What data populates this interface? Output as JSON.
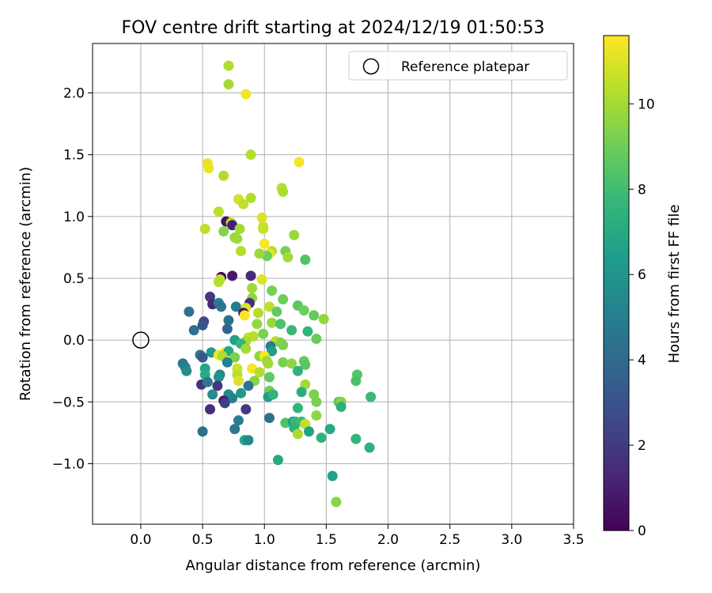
{
  "chart_data": {
    "type": "scatter",
    "title": "FOV centre drift starting at 2024/12/19 01:50:53",
    "xlabel": "Angular distance from reference (arcmin)",
    "ylabel": "Rotation from reference (arcmin)",
    "xlim": [
      -0.39,
      3.5
    ],
    "ylim": [
      -1.49,
      2.4
    ],
    "xticks": [
      0.0,
      0.5,
      1.0,
      1.5,
      2.0,
      2.5,
      3.0,
      3.5
    ],
    "xtick_labels": [
      "0.0",
      "0.5",
      "1.0",
      "1.5",
      "2.0",
      "2.5",
      "3.0",
      "3.5"
    ],
    "yticks": [
      -1.0,
      -0.5,
      0.0,
      0.5,
      1.0,
      1.5,
      2.0
    ],
    "ytick_labels": [
      "−1.0",
      "−0.5",
      "0.0",
      "0.5",
      "1.0",
      "1.5",
      "2.0"
    ],
    "grid": true,
    "legend": {
      "position": "top-right",
      "label": "Reference platepar"
    },
    "reference_point": {
      "x": 0.0,
      "y": 0.0
    },
    "colorbar": {
      "label": "Hours from first FF file",
      "min": 0,
      "max": 11.6,
      "ticks": [
        0,
        2,
        4,
        6,
        8,
        10
      ],
      "tick_labels": [
        "0",
        "2",
        "4",
        "6",
        "8",
        "10"
      ],
      "colormap": [
        "#440154",
        "#482878",
        "#3e4989",
        "#31688e",
        "#26828e",
        "#1f9e89",
        "#35b779",
        "#6ece58",
        "#b5de2b",
        "#fde725"
      ]
    },
    "points": [
      {
        "x": 0.71,
        "y": 2.22,
        "h": 10.2
      },
      {
        "x": 0.71,
        "y": 2.07,
        "h": 10.0
      },
      {
        "x": 0.85,
        "y": 1.99,
        "h": 11.4
      },
      {
        "x": 0.89,
        "y": 1.5,
        "h": 10.3
      },
      {
        "x": 0.54,
        "y": 1.43,
        "h": 11.2
      },
      {
        "x": 0.55,
        "y": 1.39,
        "h": 11.3
      },
      {
        "x": 1.28,
        "y": 1.44,
        "h": 11.4
      },
      {
        "x": 0.67,
        "y": 1.33,
        "h": 10.2
      },
      {
        "x": 1.14,
        "y": 1.23,
        "h": 10.3
      },
      {
        "x": 1.15,
        "y": 1.2,
        "h": 10.2
      },
      {
        "x": 0.79,
        "y": 1.14,
        "h": 10.8
      },
      {
        "x": 0.89,
        "y": 1.15,
        "h": 10.2
      },
      {
        "x": 0.83,
        "y": 1.1,
        "h": 10.5
      },
      {
        "x": 0.63,
        "y": 1.04,
        "h": 10.4
      },
      {
        "x": 0.98,
        "y": 0.99,
        "h": 11.0
      },
      {
        "x": 0.69,
        "y": 0.96,
        "h": 0.5
      },
      {
        "x": 0.73,
        "y": 0.95,
        "h": 10.3
      },
      {
        "x": 0.74,
        "y": 0.93,
        "h": 1.0
      },
      {
        "x": 0.99,
        "y": 0.92,
        "h": 10.9
      },
      {
        "x": 0.99,
        "y": 0.9,
        "h": 10.6
      },
      {
        "x": 0.52,
        "y": 0.9,
        "h": 10.5
      },
      {
        "x": 0.8,
        "y": 0.9,
        "h": 10.0
      },
      {
        "x": 0.67,
        "y": 0.88,
        "h": 9.4
      },
      {
        "x": 0.76,
        "y": 0.83,
        "h": 9.8
      },
      {
        "x": 0.78,
        "y": 0.82,
        "h": 9.9
      },
      {
        "x": 1.24,
        "y": 0.85,
        "h": 9.8
      },
      {
        "x": 1.0,
        "y": 0.78,
        "h": 11.5
      },
      {
        "x": 0.81,
        "y": 0.72,
        "h": 10.3
      },
      {
        "x": 1.06,
        "y": 0.72,
        "h": 10.4
      },
      {
        "x": 1.04,
        "y": 0.7,
        "h": 11.2
      },
      {
        "x": 1.02,
        "y": 0.68,
        "h": 9.0
      },
      {
        "x": 0.96,
        "y": 0.7,
        "h": 9.8
      },
      {
        "x": 1.17,
        "y": 0.72,
        "h": 9.2
      },
      {
        "x": 1.19,
        "y": 0.67,
        "h": 10.0
      },
      {
        "x": 1.33,
        "y": 0.65,
        "h": 8.4
      },
      {
        "x": 0.65,
        "y": 0.51,
        "h": 0.3
      },
      {
        "x": 0.74,
        "y": 0.52,
        "h": 0.8
      },
      {
        "x": 0.89,
        "y": 0.52,
        "h": 1.5
      },
      {
        "x": 0.64,
        "y": 0.49,
        "h": 10.8
      },
      {
        "x": 0.98,
        "y": 0.49,
        "h": 11.0
      },
      {
        "x": 0.63,
        "y": 0.47,
        "h": 10.3
      },
      {
        "x": 0.9,
        "y": 0.42,
        "h": 9.9
      },
      {
        "x": 1.06,
        "y": 0.4,
        "h": 9.2
      },
      {
        "x": 0.56,
        "y": 0.35,
        "h": 2.0
      },
      {
        "x": 0.9,
        "y": 0.34,
        "h": 9.6
      },
      {
        "x": 0.88,
        "y": 0.3,
        "h": 1.5
      },
      {
        "x": 1.15,
        "y": 0.33,
        "h": 9.0
      },
      {
        "x": 0.58,
        "y": 0.29,
        "h": 1.2
      },
      {
        "x": 0.63,
        "y": 0.3,
        "h": 5.0
      },
      {
        "x": 0.65,
        "y": 0.27,
        "h": 4.5
      },
      {
        "x": 0.77,
        "y": 0.27,
        "h": 4.8
      },
      {
        "x": 0.85,
        "y": 0.26,
        "h": 11.0
      },
      {
        "x": 1.04,
        "y": 0.27,
        "h": 10.5
      },
      {
        "x": 1.27,
        "y": 0.28,
        "h": 8.6
      },
      {
        "x": 1.32,
        "y": 0.24,
        "h": 9.0
      },
      {
        "x": 0.39,
        "y": 0.23,
        "h": 4.3
      },
      {
        "x": 0.83,
        "y": 0.22,
        "h": 0.6
      },
      {
        "x": 0.84,
        "y": 0.2,
        "h": 11.5
      },
      {
        "x": 0.95,
        "y": 0.22,
        "h": 10.3
      },
      {
        "x": 1.1,
        "y": 0.23,
        "h": 8.8
      },
      {
        "x": 1.4,
        "y": 0.2,
        "h": 8.8
      },
      {
        "x": 1.48,
        "y": 0.17,
        "h": 9.7
      },
      {
        "x": 0.71,
        "y": 0.16,
        "h": 4.2
      },
      {
        "x": 0.51,
        "y": 0.15,
        "h": 2.5
      },
      {
        "x": 0.5,
        "y": 0.12,
        "h": 3.0
      },
      {
        "x": 1.06,
        "y": 0.14,
        "h": 9.8
      },
      {
        "x": 0.94,
        "y": 0.13,
        "h": 9.7
      },
      {
        "x": 1.13,
        "y": 0.13,
        "h": 8.3
      },
      {
        "x": 0.43,
        "y": 0.08,
        "h": 4.3
      },
      {
        "x": 0.7,
        "y": 0.09,
        "h": 3.8
      },
      {
        "x": 1.22,
        "y": 0.08,
        "h": 7.8
      },
      {
        "x": 1.35,
        "y": 0.07,
        "h": 7.6
      },
      {
        "x": 0.99,
        "y": 0.05,
        "h": 9.2
      },
      {
        "x": 0.87,
        "y": 0.02,
        "h": 10.6
      },
      {
        "x": 0.91,
        "y": 0.03,
        "h": 10.3
      },
      {
        "x": 0.76,
        "y": 0.0,
        "h": 6.6
      },
      {
        "x": 0.85,
        "y": -0.01,
        "h": 10.1
      },
      {
        "x": 1.09,
        "y": -0.01,
        "h": 10.4
      },
      {
        "x": 1.13,
        "y": -0.02,
        "h": 9.4
      },
      {
        "x": 1.42,
        "y": 0.01,
        "h": 8.9
      },
      {
        "x": 0.81,
        "y": -0.03,
        "h": 7.7
      },
      {
        "x": 1.05,
        "y": -0.05,
        "h": 4.8
      },
      {
        "x": 1.15,
        "y": -0.04,
        "h": 9.3
      },
      {
        "x": 0.85,
        "y": -0.07,
        "h": 10.0
      },
      {
        "x": 0.57,
        "y": -0.1,
        "h": 6.3
      },
      {
        "x": 0.68,
        "y": -0.1,
        "h": 11.5
      },
      {
        "x": 0.71,
        "y": -0.09,
        "h": 7.0
      },
      {
        "x": 1.06,
        "y": -0.09,
        "h": 6.5
      },
      {
        "x": 0.48,
        "y": -0.12,
        "h": 4.5
      },
      {
        "x": 0.5,
        "y": -0.14,
        "h": 3.2
      },
      {
        "x": 0.63,
        "y": -0.12,
        "h": 11.4
      },
      {
        "x": 0.66,
        "y": -0.13,
        "h": 10.2
      },
      {
        "x": 0.76,
        "y": -0.14,
        "h": 9.3
      },
      {
        "x": 0.96,
        "y": -0.13,
        "h": 9.6
      },
      {
        "x": 1.0,
        "y": -0.13,
        "h": 11.5
      },
      {
        "x": 1.02,
        "y": -0.17,
        "h": 9.8
      },
      {
        "x": 0.34,
        "y": -0.19,
        "h": 4.7
      },
      {
        "x": 0.36,
        "y": -0.22,
        "h": 4.9
      },
      {
        "x": 0.7,
        "y": -0.18,
        "h": 5.1
      },
      {
        "x": 1.03,
        "y": -0.19,
        "h": 10.0
      },
      {
        "x": 1.15,
        "y": -0.18,
        "h": 9.2
      },
      {
        "x": 1.22,
        "y": -0.19,
        "h": 9.6
      },
      {
        "x": 1.32,
        "y": -0.17,
        "h": 8.8
      },
      {
        "x": 1.33,
        "y": -0.2,
        "h": 8.6
      },
      {
        "x": 1.27,
        "y": -0.25,
        "h": 7.5
      },
      {
        "x": 0.37,
        "y": -0.25,
        "h": 5.6
      },
      {
        "x": 0.52,
        "y": -0.23,
        "h": 6.8
      },
      {
        "x": 0.78,
        "y": -0.23,
        "h": 10.8
      },
      {
        "x": 0.9,
        "y": -0.23,
        "h": 11.5
      },
      {
        "x": 0.96,
        "y": -0.26,
        "h": 10.3
      },
      {
        "x": 0.64,
        "y": -0.28,
        "h": 5.3
      },
      {
        "x": 0.63,
        "y": -0.3,
        "h": 5.8
      },
      {
        "x": 0.78,
        "y": -0.28,
        "h": 10.4
      },
      {
        "x": 0.52,
        "y": -0.28,
        "h": 7.1
      },
      {
        "x": 1.04,
        "y": -0.3,
        "h": 8.7
      },
      {
        "x": 1.75,
        "y": -0.28,
        "h": 8.5
      },
      {
        "x": 0.79,
        "y": -0.33,
        "h": 11.0
      },
      {
        "x": 0.92,
        "y": -0.33,
        "h": 9.5
      },
      {
        "x": 1.74,
        "y": -0.33,
        "h": 8.2
      },
      {
        "x": 0.49,
        "y": -0.36,
        "h": 1.8
      },
      {
        "x": 0.62,
        "y": -0.37,
        "h": 1.9
      },
      {
        "x": 0.87,
        "y": -0.37,
        "h": 4.5
      },
      {
        "x": 0.54,
        "y": -0.34,
        "h": 4.7
      },
      {
        "x": 1.33,
        "y": -0.36,
        "h": 10.0
      },
      {
        "x": 1.04,
        "y": -0.41,
        "h": 9.1
      },
      {
        "x": 1.3,
        "y": -0.42,
        "h": 7.2
      },
      {
        "x": 1.4,
        "y": -0.44,
        "h": 9.3
      },
      {
        "x": 0.58,
        "y": -0.44,
        "h": 5.7
      },
      {
        "x": 0.71,
        "y": -0.44,
        "h": 5.5
      },
      {
        "x": 0.74,
        "y": -0.47,
        "h": 5.1
      },
      {
        "x": 0.81,
        "y": -0.43,
        "h": 6.1
      },
      {
        "x": 1.03,
        "y": -0.46,
        "h": 6.5
      },
      {
        "x": 1.07,
        "y": -0.44,
        "h": 7.6
      },
      {
        "x": 1.86,
        "y": -0.46,
        "h": 7.8
      },
      {
        "x": 0.67,
        "y": -0.49,
        "h": 0.8
      },
      {
        "x": 0.68,
        "y": -0.51,
        "h": 2.2
      },
      {
        "x": 1.42,
        "y": -0.5,
        "h": 9.2
      },
      {
        "x": 1.6,
        "y": -0.5,
        "h": 8.6
      },
      {
        "x": 1.62,
        "y": -0.5,
        "h": 9.5
      },
      {
        "x": 1.62,
        "y": -0.54,
        "h": 7.3
      },
      {
        "x": 0.56,
        "y": -0.56,
        "h": 1.5
      },
      {
        "x": 0.85,
        "y": -0.56,
        "h": 2.0
      },
      {
        "x": 1.27,
        "y": -0.55,
        "h": 7.6
      },
      {
        "x": 1.42,
        "y": -0.61,
        "h": 9.6
      },
      {
        "x": 1.04,
        "y": -0.63,
        "h": 4.3
      },
      {
        "x": 0.79,
        "y": -0.65,
        "h": 4.9
      },
      {
        "x": 1.17,
        "y": -0.67,
        "h": 8.3
      },
      {
        "x": 1.23,
        "y": -0.66,
        "h": 6.5
      },
      {
        "x": 1.25,
        "y": -0.66,
        "h": 7.8
      },
      {
        "x": 1.3,
        "y": -0.66,
        "h": 8.0
      },
      {
        "x": 1.33,
        "y": -0.68,
        "h": 10.6
      },
      {
        "x": 1.24,
        "y": -0.71,
        "h": 7.4
      },
      {
        "x": 1.53,
        "y": -0.72,
        "h": 7.0
      },
      {
        "x": 0.5,
        "y": -0.74,
        "h": 4.2
      },
      {
        "x": 0.76,
        "y": -0.72,
        "h": 4.6
      },
      {
        "x": 1.27,
        "y": -0.76,
        "h": 10.1
      },
      {
        "x": 1.36,
        "y": -0.74,
        "h": 6.6
      },
      {
        "x": 1.46,
        "y": -0.79,
        "h": 7.5
      },
      {
        "x": 0.84,
        "y": -0.81,
        "h": 6.7
      },
      {
        "x": 0.87,
        "y": -0.81,
        "h": 5.5
      },
      {
        "x": 1.74,
        "y": -0.8,
        "h": 7.6
      },
      {
        "x": 1.85,
        "y": -0.87,
        "h": 7.4
      },
      {
        "x": 1.11,
        "y": -0.97,
        "h": 6.9
      },
      {
        "x": 1.55,
        "y": -1.1,
        "h": 6.6
      },
      {
        "x": 1.58,
        "y": -1.31,
        "h": 9.5
      }
    ]
  }
}
